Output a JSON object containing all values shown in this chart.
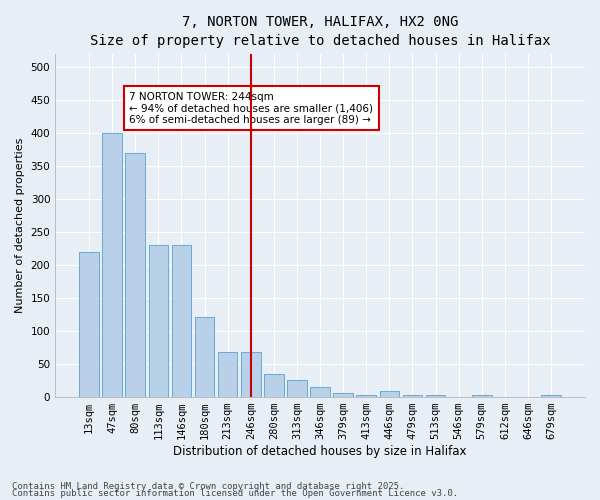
{
  "title": "7, NORTON TOWER, HALIFAX, HX2 0NG",
  "subtitle": "Size of property relative to detached houses in Halifax",
  "xlabel": "Distribution of detached houses by size in Halifax",
  "ylabel": "Number of detached properties",
  "categories": [
    "13sqm",
    "47sqm",
    "80sqm",
    "113sqm",
    "146sqm",
    "180sqm",
    "213sqm",
    "246sqm",
    "280sqm",
    "313sqm",
    "346sqm",
    "379sqm",
    "413sqm",
    "446sqm",
    "479sqm",
    "513sqm",
    "546sqm",
    "579sqm",
    "612sqm",
    "646sqm",
    "679sqm"
  ],
  "values": [
    220,
    400,
    370,
    230,
    230,
    120,
    68,
    68,
    35,
    25,
    15,
    5,
    2,
    8,
    2,
    2,
    0,
    2,
    0,
    0,
    2
  ],
  "bar_color": "#b8d0e8",
  "bar_edge_color": "#6aaad4",
  "vline_x_index": 7,
  "vline_color": "#cc0000",
  "annotation_title": "7 NORTON TOWER: 244sqm",
  "annotation_line1": "← 94% of detached houses are smaller (1,406)",
  "annotation_line2": "6% of semi-detached houses are larger (89) →",
  "annotation_box_edgecolor": "#cc0000",
  "footnote1": "Contains HM Land Registry data © Crown copyright and database right 2025.",
  "footnote2": "Contains public sector information licensed under the Open Government Licence v3.0.",
  "background_color": "#e8eef5",
  "ylim": [
    0,
    520
  ],
  "yticks": [
    0,
    50,
    100,
    150,
    200,
    250,
    300,
    350,
    400,
    450,
    500
  ],
  "title_fontsize": 10,
  "subtitle_fontsize": 9,
  "axis_label_fontsize": 8,
  "tick_fontsize": 7.5,
  "annotation_fontsize": 7.5,
  "footnote_fontsize": 6.5
}
